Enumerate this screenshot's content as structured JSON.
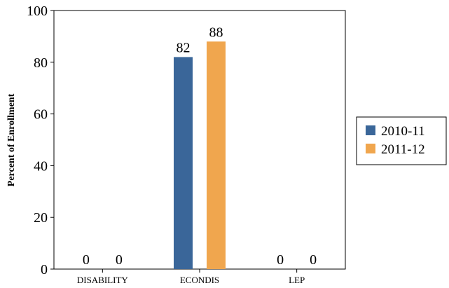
{
  "chart_data": {
    "type": "bar",
    "categories": [
      "DISABILITY",
      "ECONDIS",
      "LEP"
    ],
    "series": [
      {
        "name": "2010-11",
        "values": [
          0,
          82,
          0
        ],
        "color": "#3a6699"
      },
      {
        "name": "2011-12",
        "values": [
          0,
          88,
          0
        ],
        "color": "#f0a64e"
      }
    ],
    "ylabel": "Percent of Enrollment",
    "xlabel": "",
    "ylim": [
      0,
      100
    ],
    "yticks": [
      0,
      20,
      40,
      60,
      80,
      100
    ],
    "grid": false,
    "legend_position": "right"
  }
}
